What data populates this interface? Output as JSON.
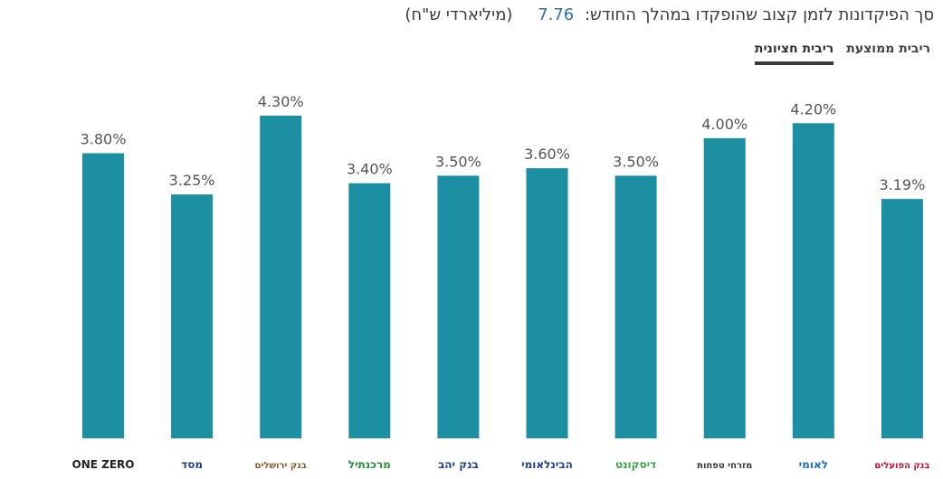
{
  "header": {
    "title": "סך הפיקדונות לזמן קצוב שהופקדו במהלך החודש:",
    "sum_value": "7.76",
    "units": "(מיליארדי ש\"ח)"
  },
  "tabs": [
    {
      "label": "ריבית ממוצעת",
      "active": false
    },
    {
      "label": "ריבית חציונית",
      "active": true
    }
  ],
  "colors": {
    "bar": "#1c8fa3",
    "accent": "#2e6fa8"
  },
  "chart_data": {
    "type": "bar",
    "categories": [
      "ONE ZERO",
      "מסד",
      "בנק ירושלים",
      "מרכנתיל",
      "בנק יהב",
      "הבינלאומי",
      "דיסקונט",
      "מזרחי טפחות",
      "לאומי",
      "בנק הפועלים"
    ],
    "values": [
      3.8,
      3.25,
      4.3,
      3.4,
      3.5,
      3.6,
      3.5,
      4.0,
      4.2,
      3.19
    ],
    "value_labels": [
      "3.80%",
      "3.25%",
      "4.30%",
      "3.40%",
      "3.50%",
      "3.60%",
      "3.50%",
      "4.00%",
      "4.20%",
      "3.19%"
    ],
    "ylim": [
      0,
      4.3
    ],
    "grid": false,
    "legend": "none"
  },
  "logos": [
    {
      "name": "one-zero-logo",
      "text": "ONE ZERO",
      "color": "#222222"
    },
    {
      "name": "masad-logo",
      "text": "מסד",
      "color": "#1f3f8c"
    },
    {
      "name": "bank-jerusalem-logo",
      "text": "בנק ירושלים",
      "color": "#8a5a2b"
    },
    {
      "name": "mercantile-logo",
      "text": "מרכנתיל",
      "color": "#2a8a3a"
    },
    {
      "name": "bank-yahav-logo",
      "text": "בנק יהב",
      "color": "#1f3f8c"
    },
    {
      "name": "first-international-logo",
      "text": "הבינלאומי",
      "color": "#1f3f8c"
    },
    {
      "name": "discount-logo",
      "text": "דיסקונט",
      "color": "#3aa64a"
    },
    {
      "name": "mizrahi-tefahot-logo",
      "text": "מזרחי טפחות",
      "color": "#333333"
    },
    {
      "name": "leumi-logo",
      "text": "לאומי",
      "color": "#1a6fc0"
    },
    {
      "name": "bank-hapoalim-logo",
      "text": "בנק הפועלים",
      "color": "#c8102e"
    }
  ]
}
